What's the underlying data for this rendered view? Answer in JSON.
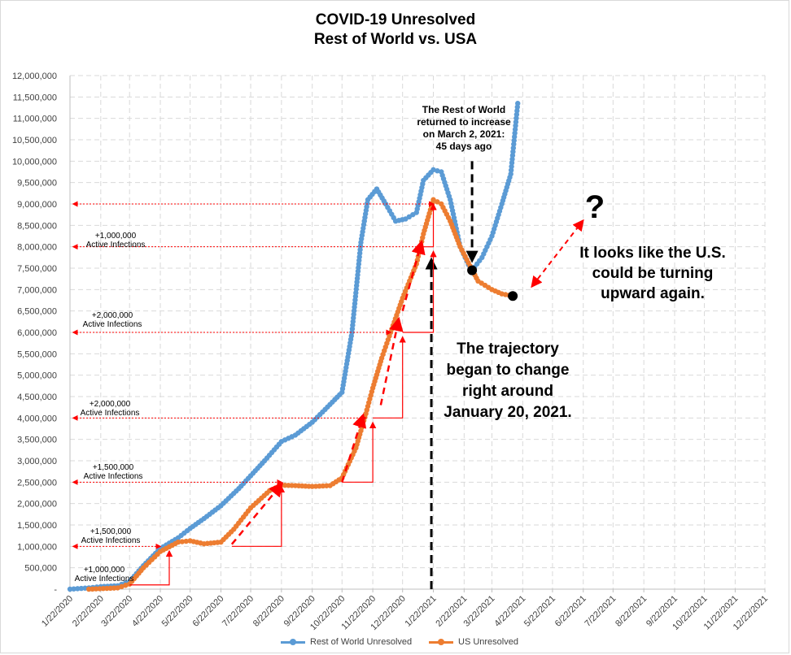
{
  "chart_data": {
    "type": "line",
    "title": "COVID-19 Unresolved",
    "subtitle": "Rest of World vs. USA",
    "x_tick_labels": [
      "1/22/2020",
      "2/22/2020",
      "3/22/2020",
      "4/22/2020",
      "5/22/2020",
      "6/22/2020",
      "7/22/2020",
      "8/22/2020",
      "9/22/2020",
      "10/22/2020",
      "11/22/2020",
      "12/22/2020",
      "1/22/2021",
      "2/22/2021",
      "3/22/2021",
      "4/22/2021",
      "5/22/2021",
      "6/22/2021",
      "7/22/2021",
      "8/22/2021",
      "9/22/2021",
      "10/22/2021",
      "11/22/2021",
      "12/22/2021"
    ],
    "y_tick_labels": [
      "-",
      "500,000",
      "1,000,000",
      "1,500,000",
      "2,000,000",
      "2,500,000",
      "3,000,000",
      "3,500,000",
      "4,000,000",
      "4,500,000",
      "5,000,000",
      "5,500,000",
      "6,000,000",
      "6,500,000",
      "7,000,000",
      "7,500,000",
      "8,000,000",
      "8,500,000",
      "9,000,000",
      "9,500,000",
      "10,000,000",
      "10,500,000",
      "11,000,000",
      "11,500,000",
      "12,000,000"
    ],
    "ylim": [
      0,
      12000000
    ],
    "xlim": [
      "1/22/2020",
      "12/22/2021"
    ],
    "grid": "dashed vertical and horizontal",
    "legend_position": "bottom",
    "series": [
      {
        "name": "Rest of World Unresolved",
        "color": "#5b9bd5",
        "points": [
          [
            "1/22/2020",
            0
          ],
          [
            "2/10/2020",
            30000
          ],
          [
            "2/22/2020",
            60000
          ],
          [
            "3/10/2020",
            80000
          ],
          [
            "3/22/2020",
            180000
          ],
          [
            "4/5/2020",
            550000
          ],
          [
            "4/22/2020",
            950000
          ],
          [
            "5/10/2020",
            1200000
          ],
          [
            "5/22/2020",
            1420000
          ],
          [
            "6/5/2020",
            1650000
          ],
          [
            "6/22/2020",
            1950000
          ],
          [
            "7/10/2020",
            2350000
          ],
          [
            "7/22/2020",
            2650000
          ],
          [
            "8/5/2020",
            3000000
          ],
          [
            "8/22/2020",
            3450000
          ],
          [
            "9/5/2020",
            3600000
          ],
          [
            "9/22/2020",
            3900000
          ],
          [
            "10/5/2020",
            4200000
          ],
          [
            "10/22/2020",
            4600000
          ],
          [
            "11/1/2020",
            6000000
          ],
          [
            "11/10/2020",
            8100000
          ],
          [
            "11/17/2020",
            9100000
          ],
          [
            "11/26/2020",
            9350000
          ],
          [
            "12/5/2020",
            9000000
          ],
          [
            "12/15/2020",
            8600000
          ],
          [
            "12/25/2020",
            8650000
          ],
          [
            "1/5/2021",
            8800000
          ],
          [
            "1/12/2021",
            9550000
          ],
          [
            "1/22/2021",
            9800000
          ],
          [
            "1/30/2021",
            9750000
          ],
          [
            "2/8/2021",
            9100000
          ],
          [
            "2/18/2021",
            8000000
          ],
          [
            "2/28/2021",
            7500000
          ],
          [
            "3/2/2021",
            7450000
          ],
          [
            "3/12/2021",
            7750000
          ],
          [
            "3/22/2021",
            8250000
          ],
          [
            "4/1/2021",
            9000000
          ],
          [
            "4/10/2021",
            9700000
          ],
          [
            "4/17/2021",
            11350000
          ]
        ]
      },
      {
        "name": "US Unresolved",
        "color": "#ed7d31",
        "points": [
          [
            "2/10/2020",
            0
          ],
          [
            "3/10/2020",
            30000
          ],
          [
            "3/22/2020",
            120000
          ],
          [
            "4/5/2020",
            500000
          ],
          [
            "4/22/2020",
            880000
          ],
          [
            "5/10/2020",
            1100000
          ],
          [
            "5/22/2020",
            1130000
          ],
          [
            "6/5/2020",
            1060000
          ],
          [
            "6/22/2020",
            1100000
          ],
          [
            "7/5/2020",
            1400000
          ],
          [
            "7/22/2020",
            1900000
          ],
          [
            "8/10/2020",
            2300000
          ],
          [
            "8/22/2020",
            2430000
          ],
          [
            "9/5/2020",
            2420000
          ],
          [
            "9/22/2020",
            2400000
          ],
          [
            "10/10/2020",
            2420000
          ],
          [
            "10/22/2020",
            2600000
          ],
          [
            "11/5/2020",
            3300000
          ],
          [
            "11/15/2020",
            4100000
          ],
          [
            "11/22/2020",
            4700000
          ],
          [
            "12/1/2020",
            5400000
          ],
          [
            "12/10/2020",
            6000000
          ],
          [
            "12/22/2020",
            6800000
          ],
          [
            "1/5/2021",
            7600000
          ],
          [
            "1/12/2021",
            8300000
          ],
          [
            "1/22/2021",
            9100000
          ],
          [
            "1/30/2021",
            9000000
          ],
          [
            "2/8/2021",
            8600000
          ],
          [
            "2/18/2021",
            8000000
          ],
          [
            "2/28/2021",
            7550000
          ],
          [
            "3/8/2021",
            7200000
          ],
          [
            "3/22/2021",
            7000000
          ],
          [
            "4/1/2021",
            6900000
          ],
          [
            "4/12/2021",
            6850000
          ]
        ]
      }
    ],
    "growth_labels": [
      {
        "text": "+1,000,000",
        "sub": "Active Infections"
      },
      {
        "text": "+2,000,000",
        "sub": "Active Infections"
      },
      {
        "text": "+2,000,000",
        "sub": "Active Infections"
      },
      {
        "text": "+1,500,000",
        "sub": "Active Infections"
      },
      {
        "text": "+1,500,000",
        "sub": "Active Infections"
      },
      {
        "text": "+1,000,000",
        "sub": "Active Infections"
      }
    ],
    "annotations": {
      "row_note": [
        "The Rest of World",
        "returned to increase",
        "on March 2, 2021:",
        "45 days ago"
      ],
      "trajectory_note": [
        "The trajectory",
        "began to change",
        "right around",
        "January 20, 2021."
      ],
      "us_note": [
        "It looks like the U.S.",
        "could be turning",
        "upward again."
      ],
      "question_mark": "?"
    },
    "marker_dates": {
      "row_black_dot": "3/2/2021",
      "us_black_dot": "4/12/2021",
      "change_line": "1/20/2021"
    },
    "colors": {
      "arrow": "#ff0000",
      "marker": "#000000",
      "grid": "#d9d9d9"
    }
  }
}
